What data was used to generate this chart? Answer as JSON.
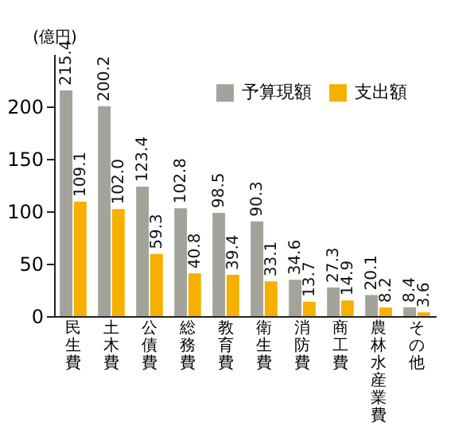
{
  "chart_data": {
    "type": "bar",
    "ylabel": "(億円)",
    "categories": [
      "民生費",
      "土木費",
      "公債費",
      "総務費",
      "教育費",
      "衛生費",
      "消防費",
      "商工費",
      "農林水産業費",
      "その他"
    ],
    "series": [
      {
        "name": "予算現額",
        "color": "#a3a39b",
        "values": [
          215.4,
          200.2,
          123.4,
          102.8,
          98.5,
          90.3,
          34.6,
          27.3,
          20.1,
          8.4
        ],
        "value_labels": [
          "215.4",
          "200.2",
          "123.4",
          "102.8",
          "98.5",
          "90.3",
          "34.6",
          "27.3",
          "20.1",
          "8.4"
        ]
      },
      {
        "name": "支出額",
        "color": "#f5b000",
        "values": [
          109.1,
          102.0,
          59.3,
          40.8,
          39.4,
          33.1,
          13.7,
          14.9,
          8.2,
          3.6
        ],
        "value_labels": [
          "109.1",
          "102.0",
          "59.3",
          "40.8",
          "39.4",
          "33.1",
          "13.7",
          "14.9",
          "8.2",
          "3.6"
        ]
      }
    ],
    "ylim": [
      0,
      250
    ],
    "yticks": [
      0,
      50,
      100,
      150,
      200
    ],
    "grid": false,
    "legend": "top right"
  }
}
